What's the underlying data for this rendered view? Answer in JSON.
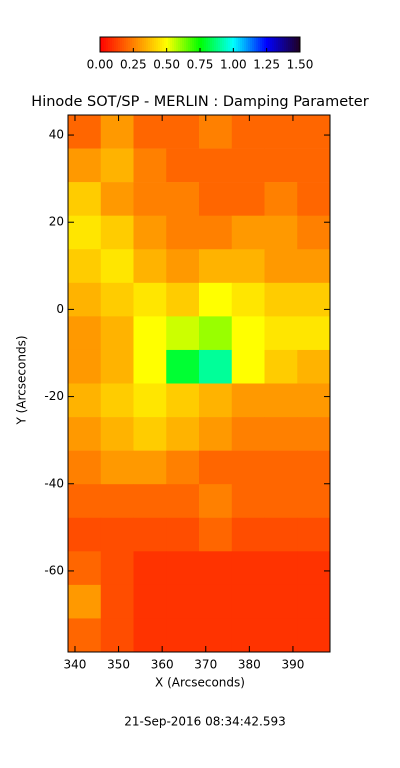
{
  "chart_data": {
    "type": "heatmap",
    "title": "Hinode SOT/SP - MERLIN : Damping Parameter",
    "x_label": "X (Arcseconds)",
    "y_label": "Y (Arcseconds)",
    "footer": "21-Sep-2016 08:34:42.593",
    "xlim": [
      338.4,
      398.5
    ],
    "ylim": [
      -78.6,
      44.6
    ],
    "xticks": [
      340,
      350,
      360,
      370,
      380,
      390
    ],
    "yticks": [
      -60,
      -40,
      -20,
      0,
      20,
      40
    ],
    "colorbar_lim": [
      0,
      1.5
    ],
    "colorbar_ticks": [
      {
        "value": 0,
        "label": "0.00"
      },
      {
        "value": 0.25,
        "label": "0.25"
      },
      {
        "value": 0.5,
        "label": "0.50"
      },
      {
        "value": 0.75,
        "label": "0.75"
      },
      {
        "value": 1,
        "label": "1.00"
      },
      {
        "value": 1.25,
        "label": "1.25"
      },
      {
        "value": 1.5,
        "label": "1.50"
      }
    ],
    "colormap": [
      "#ff0000",
      "#ff8000",
      "#ffff00",
      "#00ff00",
      "#00ffff",
      "#0000ff",
      "#200020"
    ],
    "z": [
      [
        0.2,
        0.3,
        0.2,
        0.2,
        0.25,
        0.2,
        0.2,
        0.2
      ],
      [
        0.3,
        0.35,
        0.25,
        0.2,
        0.2,
        0.2,
        0.2,
        0.2
      ],
      [
        0.4,
        0.3,
        0.25,
        0.25,
        0.2,
        0.2,
        0.25,
        0.2
      ],
      [
        0.45,
        0.4,
        0.3,
        0.25,
        0.25,
        0.3,
        0.3,
        0.25
      ],
      [
        0.4,
        0.45,
        0.35,
        0.3,
        0.35,
        0.35,
        0.3,
        0.3
      ],
      [
        0.35,
        0.4,
        0.45,
        0.4,
        0.5,
        0.45,
        0.4,
        0.4
      ],
      [
        0.3,
        0.35,
        0.5,
        0.55,
        0.6,
        0.5,
        0.45,
        0.45
      ],
      [
        0.3,
        0.35,
        0.5,
        0.8,
        0.9,
        0.5,
        0.4,
        0.35
      ],
      [
        0.35,
        0.4,
        0.45,
        0.4,
        0.35,
        0.3,
        0.3,
        0.3
      ],
      [
        0.3,
        0.35,
        0.4,
        0.35,
        0.3,
        0.25,
        0.25,
        0.25
      ],
      [
        0.25,
        0.3,
        0.3,
        0.25,
        0.2,
        0.2,
        0.2,
        0.2
      ],
      [
        0.2,
        0.2,
        0.2,
        0.2,
        0.25,
        0.2,
        0.2,
        0.2
      ],
      [
        0.15,
        0.15,
        0.15,
        0.15,
        0.2,
        0.15,
        0.15,
        0.15
      ],
      [
        0.2,
        0.15,
        0.1,
        0.1,
        0.1,
        0.1,
        0.1,
        0.1
      ],
      [
        0.3,
        0.15,
        0.1,
        0.1,
        0.1,
        0.1,
        0.1,
        0.1
      ],
      [
        0.2,
        0.15,
        0.1,
        0.1,
        0.1,
        0.1,
        0.1,
        0.1
      ]
    ]
  }
}
